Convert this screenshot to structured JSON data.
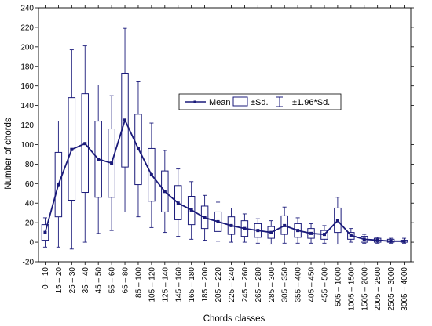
{
  "chart_data": {
    "type": "box",
    "xlabel": "Chords classes",
    "ylabel": "Number of chords",
    "ylim": [
      -20,
      240
    ],
    "yticks": [
      -20,
      0,
      20,
      40,
      60,
      80,
      100,
      120,
      140,
      160,
      180,
      200,
      220,
      240
    ],
    "grid": false,
    "legend_position": "center",
    "legend": [
      {
        "key": "mean",
        "label": "Mean"
      },
      {
        "key": "sd",
        "label": "±Sd."
      },
      {
        "key": "ci",
        "label": "±1.96*Sd."
      }
    ],
    "colors": {
      "primary": "#1a1a7a"
    },
    "categories": [
      "0 – 10",
      "15 – 20",
      "25 – 30",
      "35 – 40",
      "45 – 50",
      "55 – 60",
      "65 – 80",
      "85 – 100",
      "105 – 120",
      "125 – 140",
      "145 – 160",
      "165 – 180",
      "185 – 200",
      "205 – 220",
      "225 – 240",
      "245 – 260",
      "265 – 280",
      "285 – 300",
      "305 – 350",
      "355 – 400",
      "405 – 450",
      "455 – 500",
      "505 – 1000",
      "1005 – 1500",
      "1505 – 2000",
      "2005 – 2500",
      "2505 – 3000",
      "3005 – 4000"
    ],
    "mean": [
      10,
      59,
      95,
      101,
      85,
      81,
      125,
      96,
      69,
      52,
      40,
      33,
      25,
      21,
      17,
      14,
      12,
      10,
      17,
      12,
      9,
      8,
      22,
      7,
      3,
      2,
      1,
      1
    ],
    "sd_lower": [
      2,
      26,
      43,
      51,
      46,
      46,
      77,
      59,
      42,
      31,
      23,
      18,
      14,
      11,
      8,
      6,
      5,
      4,
      8,
      5,
      4,
      3,
      10,
      3,
      0,
      0,
      0,
      0
    ],
    "sd_upper": [
      18,
      92,
      148,
      152,
      124,
      116,
      173,
      131,
      96,
      73,
      58,
      47,
      37,
      31,
      26,
      22,
      19,
      16,
      27,
      19,
      14,
      12,
      35,
      10,
      6,
      4,
      3,
      2
    ],
    "ci_lower": [
      -5,
      -5,
      -7,
      0,
      9,
      12,
      31,
      26,
      15,
      10,
      6,
      3,
      2,
      1,
      0,
      0,
      -1,
      -2,
      -1,
      -1,
      -1,
      -1,
      -2,
      0,
      -1,
      -1,
      -1,
      -1
    ],
    "ci_upper": [
      25,
      124,
      197,
      201,
      161,
      150,
      219,
      165,
      122,
      94,
      75,
      62,
      48,
      41,
      35,
      29,
      24,
      22,
      36,
      25,
      19,
      17,
      46,
      14,
      8,
      5,
      4,
      4
    ]
  }
}
